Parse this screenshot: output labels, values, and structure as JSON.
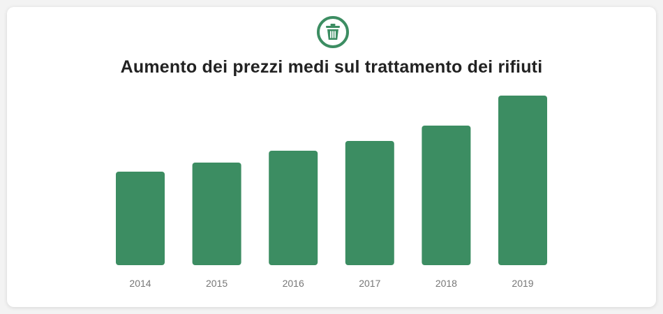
{
  "colors": {
    "bar": "#3c8d62",
    "card": "#ffffff",
    "background": "#f3f3f3",
    "title": "#222222",
    "tick": "#777777"
  },
  "icon": "trash-can-icon",
  "chart_data": {
    "type": "bar",
    "title": "Aumento dei prezzi medi sul trattamento dei rifiuti",
    "xlabel": "",
    "ylabel": "",
    "grid": false,
    "categories": [
      "2014",
      "2015",
      "2016",
      "2017",
      "2018",
      "2019"
    ],
    "values": [
      134,
      147,
      164,
      178,
      200,
      243
    ],
    "ylim": [
      0,
      243
    ]
  }
}
